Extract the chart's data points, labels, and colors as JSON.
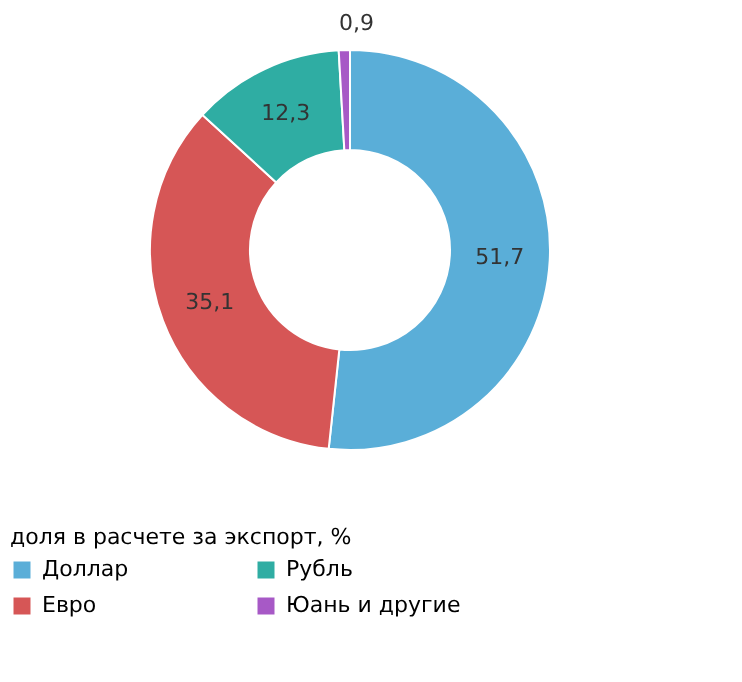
{
  "chart_data": {
    "type": "donut",
    "categories": [
      "Доллар",
      "Евро",
      "Рубль",
      "Юань и другие"
    ],
    "values": [
      51.7,
      35.1,
      12.3,
      0.9
    ],
    "colors": [
      "#5aaed8",
      "#d65656",
      "#2fada3",
      "#a759c6"
    ],
    "value_labels": [
      "51,7",
      "35,1",
      "12,3",
      "0,9"
    ],
    "legend": "bottom",
    "legend_title": "доля в расчете за экспорт, %"
  }
}
